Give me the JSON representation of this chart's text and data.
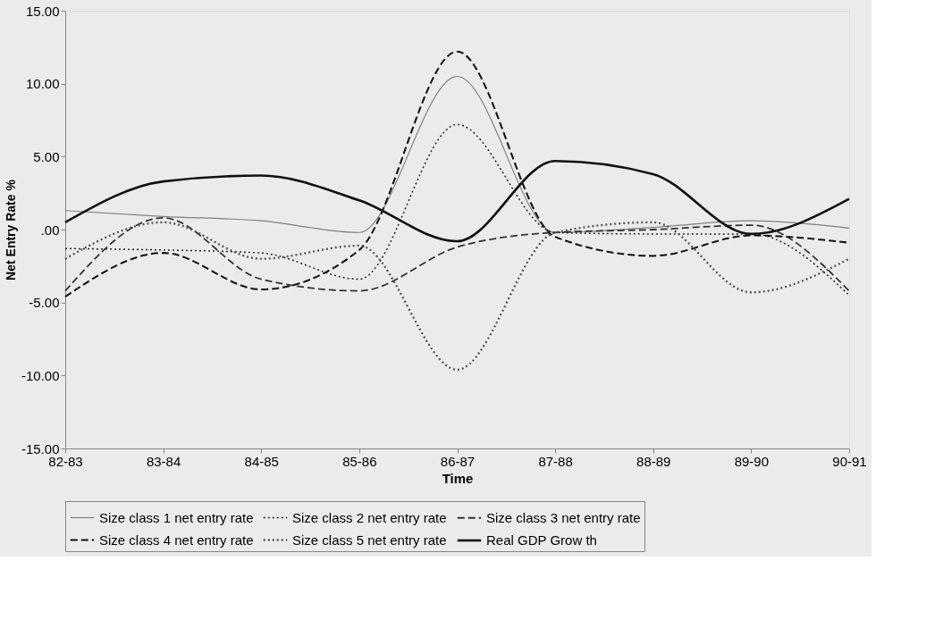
{
  "chart_data": {
    "type": "line",
    "xlabel": "Time",
    "ylabel": "Net Entry Rate %",
    "categories": [
      "82-83",
      "83-84",
      "84-85",
      "85-86",
      "86-87",
      "87-88",
      "88-89",
      "89-90",
      "90-91"
    ],
    "series": [
      {
        "name": "Size class 1 net entry rate",
        "color": "#808080",
        "line_style": "solid",
        "values": [
          1.3,
          0.9,
          0.6,
          -0.2,
          10.5,
          -0.2,
          0.15,
          0.6,
          0.1
        ]
      },
      {
        "name": "Size class 2 net entry rate",
        "color": "#222222",
        "line_style": "dotted",
        "values": [
          -1.3,
          -1.4,
          -1.6,
          -3.4,
          7.2,
          -0.2,
          -0.3,
          -0.3,
          -4.5
        ]
      },
      {
        "name": "Size class 3 net entry rate",
        "color": "#333333",
        "line_style": "dashed",
        "values": [
          -4.2,
          0.8,
          -3.4,
          -4.2,
          -1.2,
          -0.2,
          0.0,
          0.3,
          -4.2
        ]
      },
      {
        "name": "Size class 4 net entry rate",
        "color": "#111111",
        "line_style": "dashed",
        "values": [
          -4.6,
          -1.6,
          -4.1,
          -1.4,
          12.2,
          -0.5,
          -1.8,
          -0.4,
          -0.9
        ]
      },
      {
        "name": "Size class 5 net entry rate",
        "color": "#555555",
        "line_style": "dotted",
        "values": [
          -2.0,
          0.5,
          -2.0,
          -1.1,
          -9.6,
          -0.2,
          0.5,
          -4.3,
          -2.0
        ]
      },
      {
        "name": "Real GDP Grow th",
        "color": "#111111",
        "line_style": "solid",
        "values": [
          0.5,
          3.3,
          3.7,
          2.0,
          -0.8,
          4.7,
          3.8,
          -0.3,
          2.1
        ]
      }
    ],
    "ylim": [
      -15,
      15
    ],
    "yticks": [
      {
        "value": -15,
        "label": "-15.00"
      },
      {
        "value": -10,
        "label": "-10.00"
      },
      {
        "value": -5,
        "label": "-5.00"
      },
      {
        "value": 0,
        "label": ".00"
      },
      {
        "value": 5,
        "label": "5.00"
      },
      {
        "value": 10,
        "label": "10.00"
      },
      {
        "value": 15,
        "label": "15.00"
      }
    ],
    "grid": false,
    "legend": "bottom"
  }
}
